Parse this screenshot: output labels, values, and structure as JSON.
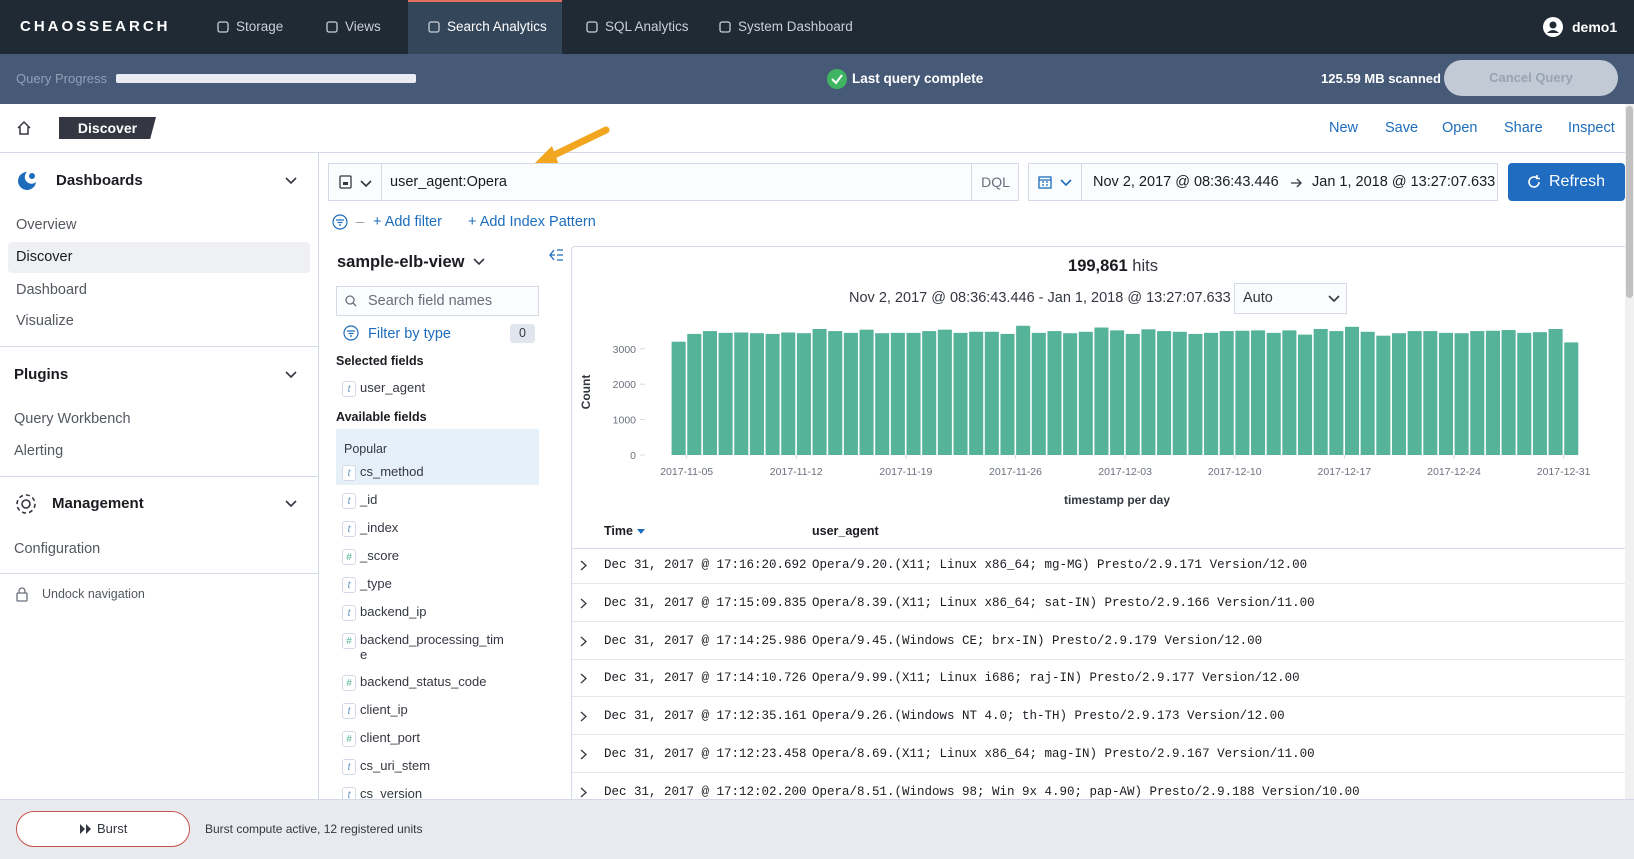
{
  "nav": {
    "logo": "CHAOSSEARCH",
    "items": [
      "Storage",
      "Views",
      "Search Analytics",
      "SQL Analytics",
      "System Dashboard"
    ],
    "active": 2,
    "user": "demo1"
  },
  "progress": {
    "label": "Query Progress",
    "status": "Last query complete",
    "scanned": "125.59 MB scanned",
    "cancel": "Cancel Query"
  },
  "header": {
    "page": "Discover",
    "actions": [
      "New",
      "Save",
      "Open",
      "Share",
      "Inspect"
    ]
  },
  "sidebar": {
    "sections": [
      {
        "title": "Dashboards",
        "items": [
          "Overview",
          "Discover",
          "Dashboard",
          "Visualize"
        ],
        "selected": 1
      },
      {
        "title": "Plugins",
        "items": [
          "Query Workbench",
          "Alerting"
        ]
      },
      {
        "title": "Management",
        "items": [
          "Configuration"
        ]
      }
    ],
    "undock": "Undock navigation"
  },
  "query": {
    "text": "user_agent:Opera",
    "language": "DQL",
    "from": "Nov 2, 2017 @ 08:36:43.446",
    "to": "Jan 1, 2018 @ 13:27:07.633",
    "refresh": "Refresh",
    "add_filter": "+ Add filter",
    "add_index": "+ Add Index Pattern"
  },
  "fields": {
    "index": "sample-elb-view",
    "search_placeholder": "Search field names",
    "filter_by_type": "Filter by type",
    "filter_count": 0,
    "selected_title": "Selected fields",
    "selected": [
      {
        "type": "t",
        "name": "user_agent"
      }
    ],
    "available_title": "Available fields",
    "popular_title": "Popular",
    "popular": [
      {
        "type": "t",
        "name": "cs_method"
      }
    ],
    "available": [
      {
        "type": "t",
        "name": "_id"
      },
      {
        "type": "t",
        "name": "_index"
      },
      {
        "type": "#",
        "name": "_score"
      },
      {
        "type": "t",
        "name": "_type"
      },
      {
        "type": "t",
        "name": "backend_ip"
      },
      {
        "type": "#",
        "name": "backend_processing_time"
      },
      {
        "type": "#",
        "name": "backend_status_code"
      },
      {
        "type": "t",
        "name": "client_ip"
      },
      {
        "type": "#",
        "name": "client_port"
      },
      {
        "type": "t",
        "name": "cs_uri_stem"
      },
      {
        "type": "t",
        "name": "cs_version"
      }
    ]
  },
  "results": {
    "hits": "199,861",
    "hits_label": "hits",
    "range": "Nov 2, 2017 @ 08:36:43.446 - Jan 1, 2018 @ 13:27:07.633",
    "interval": "Auto"
  },
  "chart_data": {
    "type": "bar",
    "y_label": "Count",
    "x_label": "timestamp per day",
    "color": "#54b399",
    "x": [
      "2017-11-04",
      "2017-11-05",
      "2017-11-06",
      "2017-11-07",
      "2017-11-08",
      "2017-11-09",
      "2017-11-10",
      "2017-11-11",
      "2017-11-12",
      "2017-11-13",
      "2017-11-14",
      "2017-11-15",
      "2017-11-16",
      "2017-11-17",
      "2017-11-18",
      "2017-11-19",
      "2017-11-20",
      "2017-11-21",
      "2017-11-22",
      "2017-11-23",
      "2017-11-24",
      "2017-11-25",
      "2017-11-26",
      "2017-11-27",
      "2017-11-28",
      "2017-11-29",
      "2017-11-30",
      "2017-12-01",
      "2017-12-02",
      "2017-12-03",
      "2017-12-04",
      "2017-12-05",
      "2017-12-06",
      "2017-12-07",
      "2017-12-08",
      "2017-12-09",
      "2017-12-10",
      "2017-12-11",
      "2017-12-12",
      "2017-12-13",
      "2017-12-14",
      "2017-12-15",
      "2017-12-16",
      "2017-12-17",
      "2017-12-18",
      "2017-12-19",
      "2017-12-20",
      "2017-12-21",
      "2017-12-22",
      "2017-12-23",
      "2017-12-24",
      "2017-12-25",
      "2017-12-26",
      "2017-12-27",
      "2017-12-28",
      "2017-12-29",
      "2017-12-30",
      "2017-12-31"
    ],
    "values": [
      3200,
      3420,
      3500,
      3450,
      3460,
      3440,
      3420,
      3460,
      3440,
      3560,
      3500,
      3450,
      3540,
      3440,
      3450,
      3450,
      3500,
      3540,
      3450,
      3480,
      3480,
      3420,
      3650,
      3450,
      3500,
      3440,
      3480,
      3600,
      3520,
      3420,
      3550,
      3500,
      3480,
      3420,
      3450,
      3500,
      3510,
      3520,
      3450,
      3520,
      3400,
      3560,
      3500,
      3620,
      3480,
      3370,
      3440,
      3500,
      3500,
      3450,
      3440,
      3500,
      3510,
      3530,
      3450,
      3470,
      3560,
      3180
    ],
    "ylim": [
      0,
      3700
    ],
    "yticks": [
      0,
      1000,
      2000,
      3000
    ],
    "xticks": [
      "2017-11-05",
      "2017-11-12",
      "2017-11-19",
      "2017-11-26",
      "2017-12-03",
      "2017-12-10",
      "2017-12-17",
      "2017-12-24",
      "2017-12-31"
    ]
  },
  "table": {
    "columns": [
      "Time",
      "user_agent"
    ],
    "rows": [
      [
        "Dec 31, 2017 @ 17:16:20.692",
        "Opera/9.20.(X11; Linux x86_64; mg-MG) Presto/2.9.171 Version/12.00"
      ],
      [
        "Dec 31, 2017 @ 17:15:09.835",
        "Opera/8.39.(X11; Linux x86_64; sat-IN) Presto/2.9.166 Version/11.00"
      ],
      [
        "Dec 31, 2017 @ 17:14:25.986",
        "Opera/9.45.(Windows CE; brx-IN) Presto/2.9.179 Version/12.00"
      ],
      [
        "Dec 31, 2017 @ 17:14:10.726",
        "Opera/9.99.(X11; Linux i686; raj-IN) Presto/2.9.177 Version/12.00"
      ],
      [
        "Dec 31, 2017 @ 17:12:35.161",
        "Opera/9.26.(Windows NT 4.0; th-TH) Presto/2.9.173 Version/12.00"
      ],
      [
        "Dec 31, 2017 @ 17:12:23.458",
        "Opera/8.69.(X11; Linux x86_64; mag-IN) Presto/2.9.167 Version/11.00"
      ],
      [
        "Dec 31, 2017 @ 17:12:02.200",
        "Opera/8.51.(Windows 98; Win 9x 4.90; pap-AW) Presto/2.9.188 Version/10.00"
      ]
    ]
  },
  "footer": {
    "burst": "Burst",
    "status": "Burst compute active, 12 registered units"
  }
}
